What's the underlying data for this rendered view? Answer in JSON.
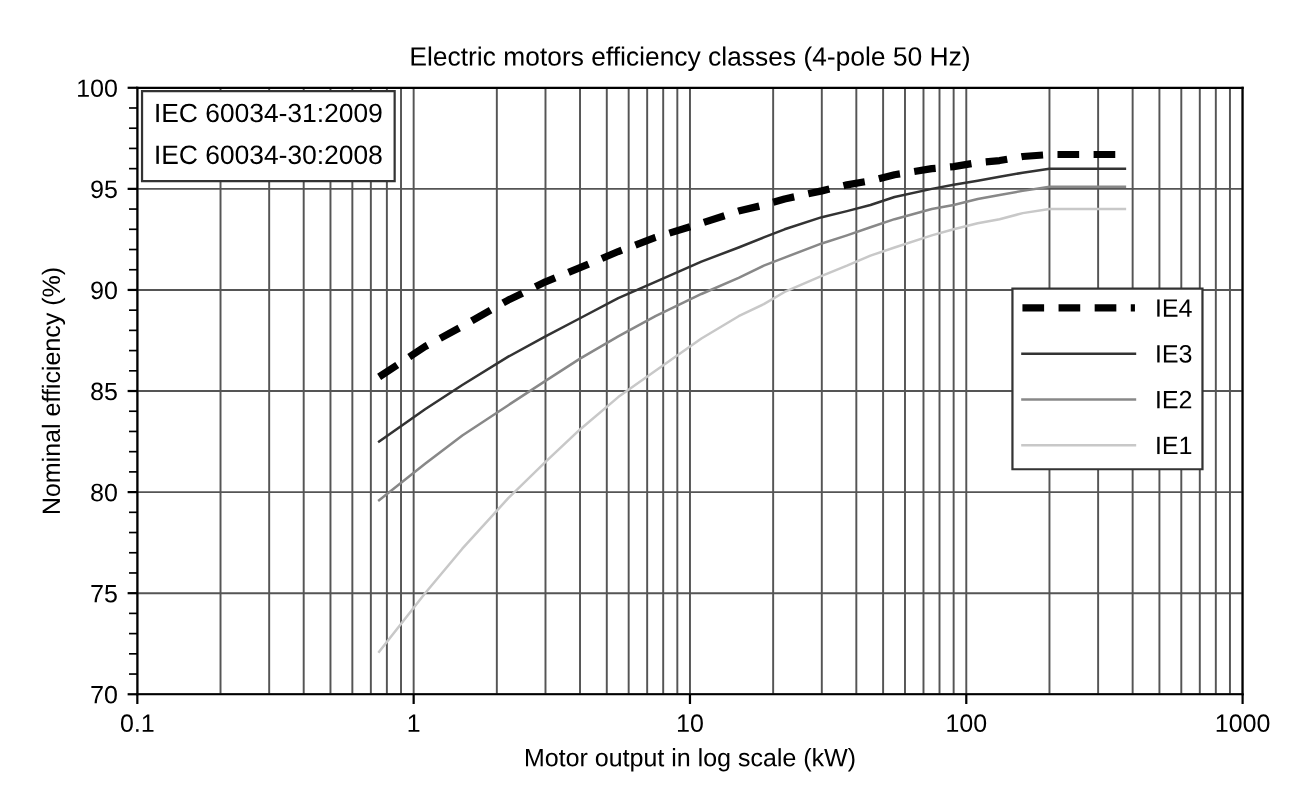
{
  "chart_data": {
    "type": "line",
    "title": "Electric motors efficiency classes (4-pole 50 Hz)",
    "xlabel": "Motor output in log scale (kW)",
    "ylabel": "Nominal efficiency (%)",
    "x": [
      0.75,
      1.1,
      1.5,
      2.2,
      3,
      4,
      5.5,
      7.5,
      11,
      15,
      18.5,
      22,
      30,
      37,
      45,
      55,
      75,
      90,
      110,
      132,
      160,
      200,
      250,
      315,
      355,
      375
    ],
    "series": [
      {
        "name": "IE4",
        "color": "#000000",
        "line_style": "dashed",
        "values": [
          85.7,
          87.2,
          88.2,
          89.5,
          90.4,
          91.1,
          91.9,
          92.6,
          93.3,
          93.9,
          94.2,
          94.5,
          94.9,
          95.2,
          95.4,
          95.7,
          96.0,
          96.1,
          96.3,
          96.4,
          96.6,
          96.7,
          96.7,
          96.7,
          96.7,
          96.7
        ]
      },
      {
        "name": "IE3",
        "color": "#333333",
        "line_style": "solid",
        "values": [
          82.5,
          84.1,
          85.3,
          86.7,
          87.7,
          88.6,
          89.6,
          90.4,
          91.4,
          92.1,
          92.6,
          93.0,
          93.6,
          93.9,
          94.2,
          94.6,
          95.0,
          95.2,
          95.4,
          95.6,
          95.8,
          96.0,
          96.0,
          96.0,
          96.0,
          96.0
        ]
      },
      {
        "name": "IE2",
        "color": "#888888",
        "line_style": "solid",
        "values": [
          79.6,
          81.4,
          82.8,
          84.3,
          85.5,
          86.6,
          87.7,
          88.7,
          89.8,
          90.6,
          91.2,
          91.6,
          92.3,
          92.7,
          93.1,
          93.5,
          94.0,
          94.2,
          94.5,
          94.7,
          94.9,
          95.1,
          95.1,
          95.1,
          95.1,
          95.1
        ]
      },
      {
        "name": "IE1",
        "color": "#c8c8c8",
        "line_style": "solid",
        "values": [
          72.1,
          75.0,
          77.2,
          79.7,
          81.5,
          83.1,
          84.7,
          86.0,
          87.6,
          88.7,
          89.3,
          89.9,
          90.7,
          91.2,
          91.7,
          92.1,
          92.7,
          93.0,
          93.3,
          93.5,
          93.8,
          94.0,
          94.0,
          94.0,
          94.0,
          94.0
        ]
      }
    ],
    "log": "x",
    "xlim": [
      0.1,
      1000
    ],
    "xticks": [
      0.1,
      1,
      10,
      100,
      1000
    ],
    "ylim": [
      70,
      100
    ],
    "yticks": [
      70,
      75,
      80,
      85,
      90,
      95,
      100
    ],
    "grid": true,
    "legend": "right",
    "marker": "none",
    "annotations": [
      "IEC 60034-31:2009",
      "IEC 60034-30:2008"
    ]
  }
}
